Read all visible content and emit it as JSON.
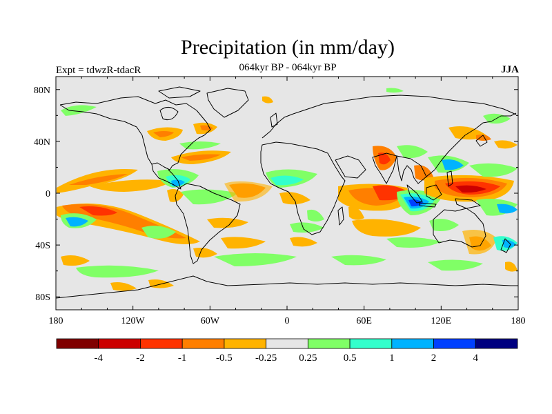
{
  "header": {
    "title": "Precipitation (in mm/day)",
    "left_label": "Expt = tdwzR-tdacR",
    "center_label": "064kyr BP - 064kyr BP",
    "right_label": "JJA"
  },
  "map": {
    "projection": "cylindrical-equidistant",
    "lon_range": [
      -180,
      180
    ],
    "lat_range": [
      -90,
      90
    ],
    "lon_ticks": [
      "180",
      "120W",
      "60W",
      "0",
      "60E",
      "120E",
      "180"
    ],
    "lat_ticks": [
      "80N",
      "40N",
      "0",
      "40S",
      "80S"
    ],
    "background_color": "#e6e6e6"
  },
  "colorbar": {
    "colors": [
      "#800000",
      "#cc0000",
      "#ff3300",
      "#ff7f00",
      "#ffb300",
      "#e6e6e6",
      "#80ff66",
      "#33ffcc",
      "#00b3ff",
      "#0040ff",
      "#000080"
    ],
    "labels": [
      "-4",
      "-2",
      "-1",
      "-0.5",
      "-0.25",
      "0.25",
      "0.5",
      "1",
      "2",
      "4"
    ]
  },
  "colors": {
    "continent_outline": "#000000",
    "land_no_change": "#e6e6e6"
  }
}
